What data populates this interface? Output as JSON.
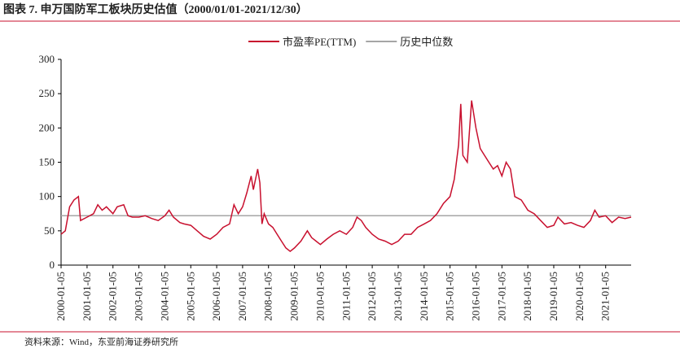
{
  "chart_data": {
    "type": "line",
    "title": "图表 7.  申万国防军工板块历史估值（2000/01/01-2021/12/30）",
    "source": "资料来源：Wind，东亚前海证券研究所",
    "xlim": [
      "2000-01-05",
      "2021-12-30"
    ],
    "xticks": [
      "2000-01-05",
      "2001-01-05",
      "2002-01-05",
      "2003-01-05",
      "2004-01-05",
      "2005-01-05",
      "2006-01-05",
      "2007-01-05",
      "2008-01-05",
      "2009-01-05",
      "2010-01-05",
      "2011-01-05",
      "2012-01-05",
      "2013-01-05",
      "2014-01-05",
      "2015-01-05",
      "2016-01-05",
      "2017-01-05",
      "2018-01-05",
      "2019-01-05",
      "2020-01-05",
      "2021-01-05"
    ],
    "ylim": [
      0,
      300
    ],
    "yticks": [
      0,
      50,
      100,
      150,
      200,
      250,
      300
    ],
    "series": [
      {
        "name": "市盈率PE(TTM)",
        "color": "#c8102e",
        "x": [
          "2000-01-05",
          "2000-03-05",
          "2000-05-05",
          "2000-07-05",
          "2000-09-05",
          "2000-10-05",
          "2001-01-05",
          "2001-04-05",
          "2001-06-05",
          "2001-08-05",
          "2001-10-05",
          "2002-01-05",
          "2002-03-05",
          "2002-06-05",
          "2002-08-05",
          "2002-10-05",
          "2003-01-05",
          "2003-04-05",
          "2003-07-05",
          "2003-10-05",
          "2004-01-05",
          "2004-03-05",
          "2004-05-05",
          "2004-08-05",
          "2004-10-05",
          "2005-01-05",
          "2005-04-05",
          "2005-07-05",
          "2005-10-05",
          "2006-01-05",
          "2006-04-05",
          "2006-07-05",
          "2006-09-05",
          "2006-11-05",
          "2007-01-05",
          "2007-03-05",
          "2007-05-05",
          "2007-06-05",
          "2007-08-05",
          "2007-09-05",
          "2007-10-05",
          "2007-11-05",
          "2008-01-05",
          "2008-03-05",
          "2008-05-05",
          "2008-07-05",
          "2008-09-05",
          "2008-11-05",
          "2009-01-05",
          "2009-04-05",
          "2009-07-05",
          "2009-09-05",
          "2009-11-05",
          "2010-01-05",
          "2010-04-05",
          "2010-07-05",
          "2010-10-05",
          "2011-01-05",
          "2011-04-05",
          "2011-06-05",
          "2011-08-05",
          "2011-10-05",
          "2012-01-05",
          "2012-04-05",
          "2012-07-05",
          "2012-10-05",
          "2013-01-05",
          "2013-04-05",
          "2013-07-05",
          "2013-10-05",
          "2014-01-05",
          "2014-04-05",
          "2014-07-05",
          "2014-10-05",
          "2015-01-05",
          "2015-03-05",
          "2015-05-05",
          "2015-06-05",
          "2015-07-05",
          "2015-09-05",
          "2015-11-05",
          "2016-01-05",
          "2016-03-05",
          "2016-05-05",
          "2016-07-05",
          "2016-09-05",
          "2016-11-05",
          "2017-01-05",
          "2017-03-05",
          "2017-05-05",
          "2017-07-05",
          "2017-10-05",
          "2018-01-05",
          "2018-04-05",
          "2018-07-05",
          "2018-10-05",
          "2019-01-05",
          "2019-03-05",
          "2019-06-05",
          "2019-09-05",
          "2019-12-05",
          "2020-03-05",
          "2020-06-05",
          "2020-08-05",
          "2020-10-05",
          "2021-01-05",
          "2021-04-05",
          "2021-07-05",
          "2021-10-05",
          "2021-12-30"
        ],
        "values": [
          45,
          50,
          85,
          95,
          100,
          65,
          70,
          75,
          88,
          80,
          85,
          75,
          85,
          88,
          72,
          70,
          70,
          72,
          68,
          65,
          72,
          80,
          70,
          62,
          60,
          58,
          50,
          42,
          38,
          45,
          55,
          60,
          88,
          75,
          85,
          105,
          130,
          110,
          140,
          120,
          60,
          75,
          60,
          55,
          45,
          35,
          25,
          20,
          25,
          35,
          50,
          40,
          35,
          30,
          38,
          45,
          50,
          45,
          55,
          70,
          65,
          55,
          45,
          38,
          35,
          30,
          35,
          45,
          45,
          55,
          60,
          65,
          75,
          90,
          100,
          125,
          175,
          235,
          160,
          150,
          240,
          200,
          170,
          160,
          150,
          140,
          145,
          130,
          150,
          140,
          100,
          95,
          80,
          75,
          65,
          55,
          58,
          70,
          60,
          62,
          58,
          55,
          65,
          80,
          70,
          72,
          62,
          70,
          68,
          70
        ]
      },
      {
        "name": "历史中位数",
        "color": "#a6a6a6",
        "x": [
          "2000-01-05",
          "2021-12-30"
        ],
        "values": [
          72,
          72
        ]
      }
    ]
  }
}
